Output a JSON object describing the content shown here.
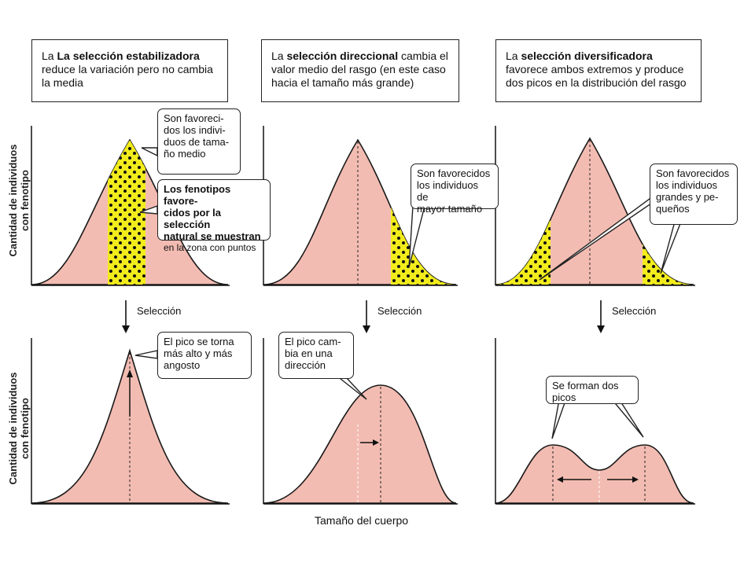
{
  "headers": [
    {
      "strong": "La selección estabilizadora",
      "rest": " reduce la variación pero no cambia la media",
      "pre": "La "
    },
    {
      "strong": "selección direccional",
      "rest": " cambia el valor medio del rasgo (en este caso hacia el tamaño más grande)",
      "pre": "La "
    },
    {
      "strong": "selección diversificadora",
      "rest": " favorece ambos extremos y produce dos picos en la distribución del rasgo",
      "pre": "La "
    }
  ],
  "y_axis_label_line1": "Cantidad de individuos",
  "y_axis_label_line2": "con fenotipo",
  "x_axis_label": "Tamaño del cuerpo",
  "selection_label": "Selección",
  "callouts": {
    "stab_favored": "Son favoreci-\ndos los indivi-\nduos de tama-\nño medio",
    "stab_phenotypes_bold": "Los fenotipos favore-\ncidos por la selección\nnatural se muestran",
    "stab_phenotypes_tail": "en la zona con puntos",
    "dir_favored": "Son favorecidos\nlos individuos de\nmayor tamaño",
    "div_favored": "Son favorecidos\nlos individuos\ngrandes y pe-\nqueños",
    "stab_after": "El pico se torna\nmás alto y más\nangosto",
    "dir_after": "El pico cam-\nbia en una\ndirección",
    "div_after": "Se forman dos\npicos"
  },
  "colors": {
    "curve_fill": "#f3bcb2",
    "curve_stroke": "#1a1a1a",
    "selected_fill": "#f2ec1c",
    "dots": "#111111"
  },
  "icons": [
    "down-arrow-icon",
    "right-arrow-icon",
    "up-arrow-icon",
    "double-arrow-icon"
  ]
}
